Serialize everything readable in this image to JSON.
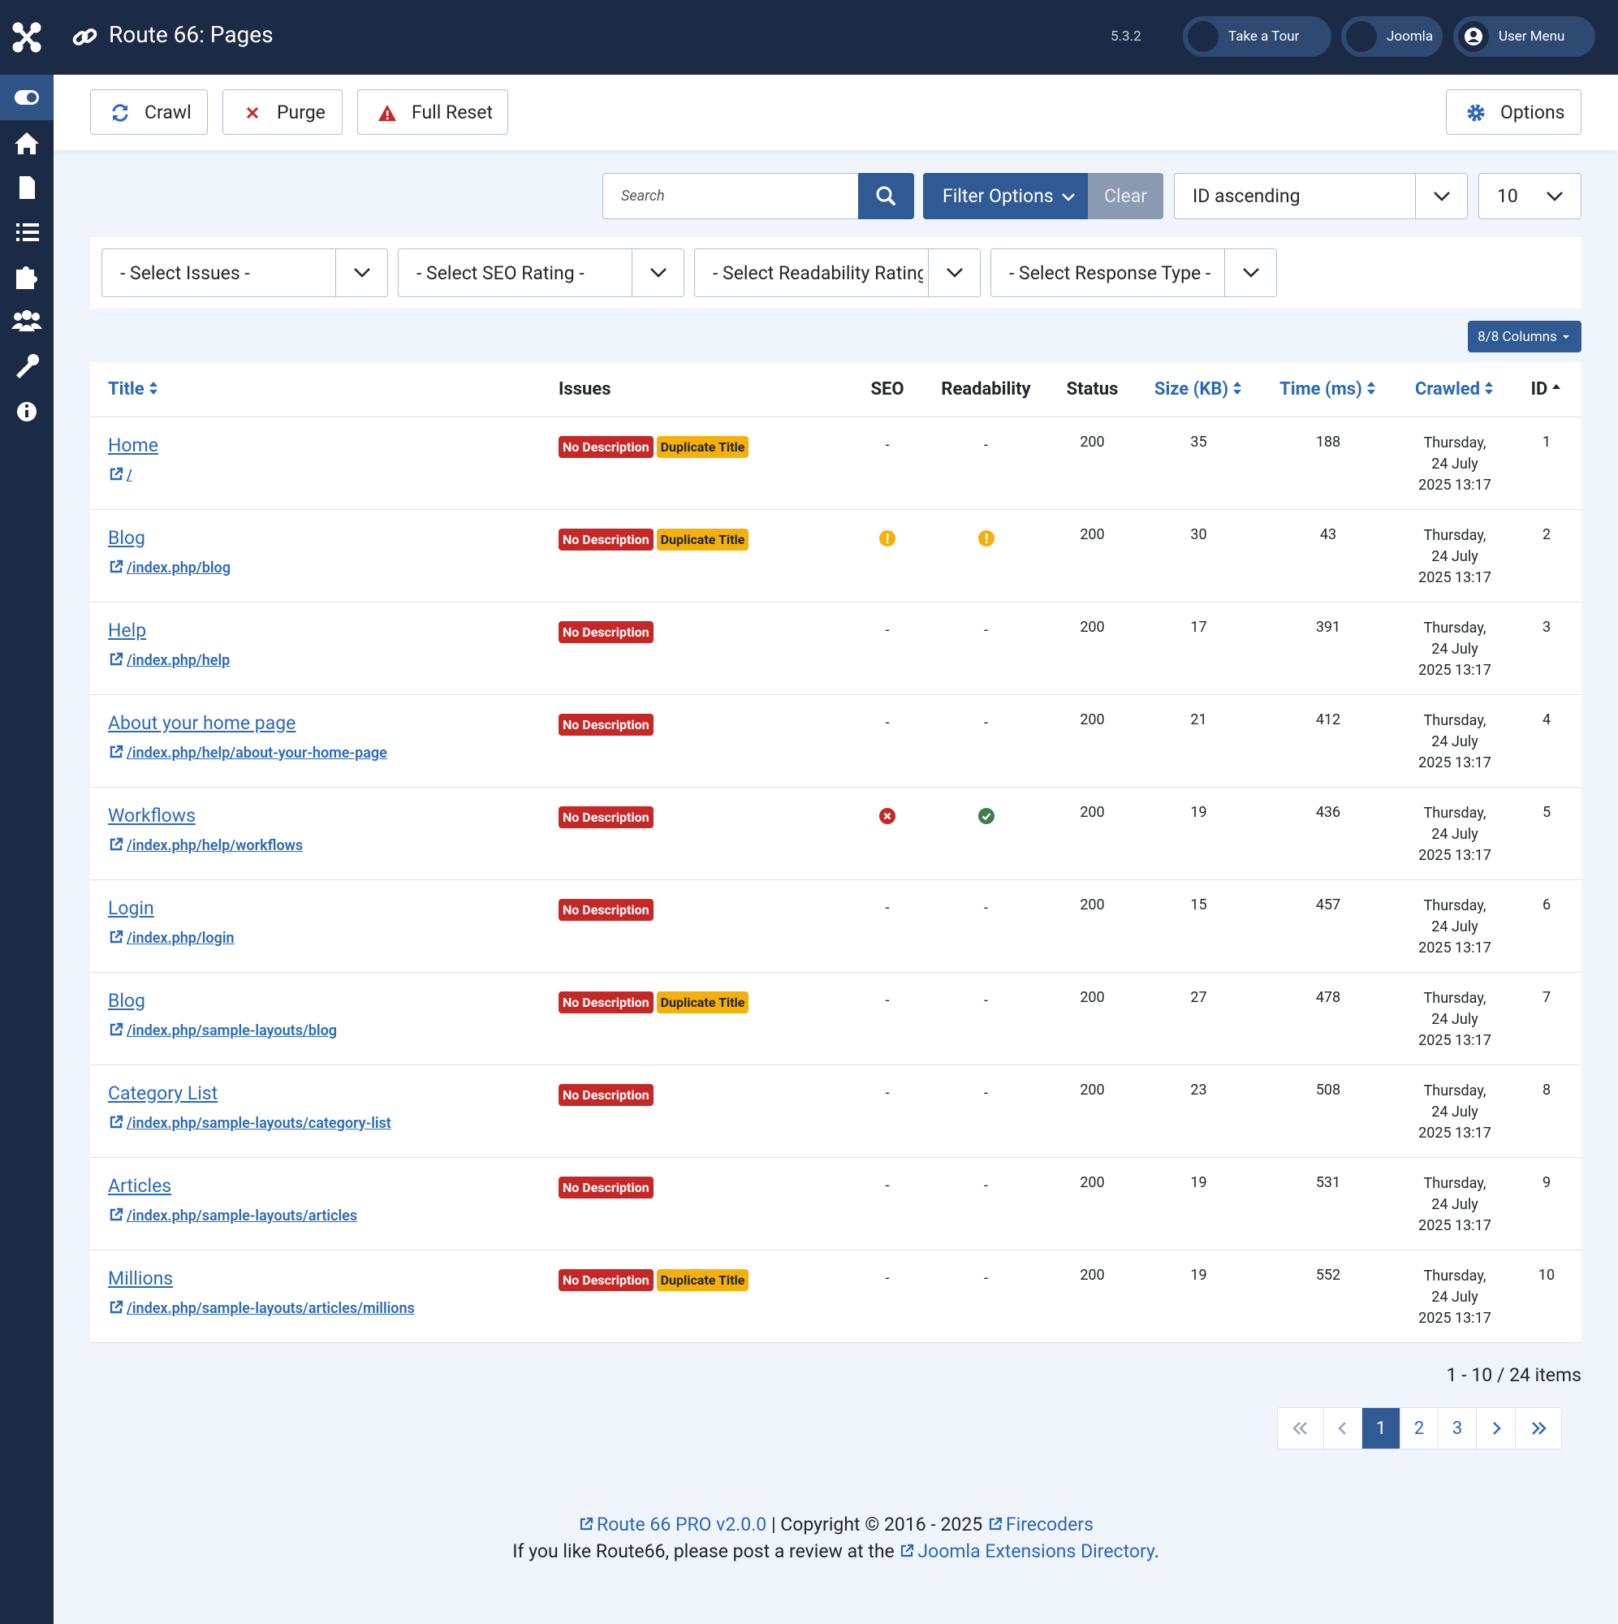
{
  "header": {
    "title": "Route 66: Pages",
    "version": "5.3.2",
    "buttons": [
      "Take a Tour",
      "Joomla",
      "User Menu"
    ]
  },
  "toolbar": {
    "buttons": [
      "Crawl",
      "Purge",
      "Full Reset"
    ],
    "options": "Options"
  },
  "search": {
    "placeholder": "Search",
    "filter_options": "Filter Options",
    "clear": "Clear",
    "ordering": "ID ascending",
    "limit": "10"
  },
  "filters": [
    "- Select Issues -",
    "- Select SEO Rating -",
    "- Select Readability Rating -",
    "- Select Response Type -"
  ],
  "columns_button": "8/8 Columns",
  "table": {
    "columns": [
      "Title",
      "Issues",
      "SEO",
      "Readability",
      "Status",
      "Size (KB)",
      "Time (ms)",
      "Crawled",
      "ID"
    ],
    "rows": [
      {
        "title": "Home",
        "url": "/",
        "issues": [
          "No Description",
          "Duplicate Title"
        ],
        "seo": "-",
        "readability": "-",
        "status": 200,
        "size": 35,
        "time": 188,
        "crawled": "Thursday,\n24 July\n2025 13:17",
        "id": 1
      },
      {
        "title": "Blog",
        "url": "/index.php/blog",
        "issues": [
          "No Description",
          "Duplicate Title"
        ],
        "seo": null,
        "readability": null,
        "status": 200,
        "size": 30,
        "time": 43,
        "crawled": "Thursday,\n24 July\n2025 13:17",
        "id": 2
      },
      {
        "title": "Help",
        "url": "/index.php/help",
        "issues": [
          "No Description"
        ],
        "seo": "-",
        "readability": "-",
        "status": 200,
        "size": 17,
        "time": 391,
        "crawled": "Thursday,\n24 July\n2025 13:17",
        "id": 3
      },
      {
        "title": "About your home page",
        "url": "/index.php/help/about-your-home-page",
        "issues": [
          "No Description"
        ],
        "seo": "-",
        "readability": "-",
        "status": 200,
        "size": 21,
        "time": 412,
        "crawled": "Thursday,\n24 July\n2025 13:17",
        "id": 4
      },
      {
        "title": "Workflows",
        "url": "/index.php/help/workflows",
        "issues": [
          "No Description"
        ],
        "seo": null,
        "readability": null,
        "status": 200,
        "size": 19,
        "time": 436,
        "crawled": "Thursday,\n24 July\n2025 13:17",
        "id": 5
      },
      {
        "title": "Login",
        "url": "/index.php/login",
        "issues": [
          "No Description"
        ],
        "seo": "-",
        "readability": "-",
        "status": 200,
        "size": 15,
        "time": 457,
        "crawled": "Thursday,\n24 July\n2025 13:17",
        "id": 6
      },
      {
        "title": "Blog",
        "url": "/index.php/sample-layouts/blog",
        "issues": [
          "No Description",
          "Duplicate Title"
        ],
        "seo": "-",
        "readability": "-",
        "status": 200,
        "size": 27,
        "time": 478,
        "crawled": "Thursday,\n24 July\n2025 13:17",
        "id": 7
      },
      {
        "title": "Category List",
        "url": "/index.php/sample-layouts/category-list",
        "issues": [
          "No Description"
        ],
        "seo": "-",
        "readability": "-",
        "status": 200,
        "size": 23,
        "time": 508,
        "crawled": "Thursday,\n24 July\n2025 13:17",
        "id": 8
      },
      {
        "title": "Articles",
        "url": "/index.php/sample-layouts/articles",
        "issues": [
          "No Description"
        ],
        "seo": "-",
        "readability": "-",
        "status": 200,
        "size": 19,
        "time": 531,
        "crawled": "Thursday,\n24 July\n2025 13:17",
        "id": 9
      },
      {
        "title": "Millions",
        "url": "/index.php/sample-layouts/articles/millions",
        "issues": [
          "No Description",
          "Duplicate Title"
        ],
        "seo": "-",
        "readability": "-",
        "status": 200,
        "size": 19,
        "time": 552,
        "crawled": "Thursday,\n24 July\n2025 13:17",
        "id": 10
      }
    ]
  },
  "pagination": {
    "summary": "1 - 10 / 24 items",
    "pages": [
      1,
      2,
      3
    ]
  },
  "footer": {
    "line1": [
      "Route 66 PRO v2.0.0",
      " | Copyright © 2016 - 2025 ",
      "Firecoders"
    ],
    "line2": [
      "If you like Route66, please post a review at the ",
      "Joomla Extensions Directory",
      "."
    ]
  }
}
